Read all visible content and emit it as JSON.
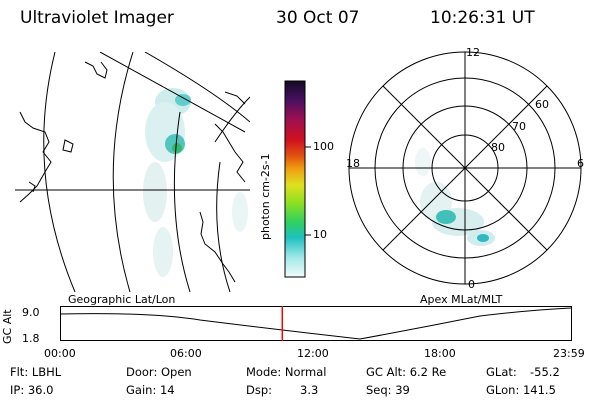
{
  "header": {
    "instrument": "Ultraviolet Imager",
    "date": "30 Oct 07",
    "time": "10:26:31 UT"
  },
  "colorbar": {
    "label": "photon cm-2s-1",
    "ticks": [
      "100",
      "10"
    ],
    "colors": [
      "#1a1033",
      "#4a1060",
      "#a01050",
      "#d01020",
      "#e05010",
      "#f0a010",
      "#e0e020",
      "#90e020",
      "#30d060",
      "#20c0c0",
      "#a0e8e8",
      "#f0f8f8"
    ]
  },
  "geo_map": {
    "title": "Geographic Lat/Lon"
  },
  "polar_plot": {
    "title": "Apex MLat/MLT",
    "mlt_labels": [
      "12",
      "6",
      "0",
      "18"
    ],
    "lat_labels": [
      "60",
      "70",
      "80"
    ]
  },
  "altitude_plot": {
    "ylabel": "GC Alt",
    "yticks": [
      "9.0",
      "1.8"
    ],
    "xticks": [
      "00:00",
      "06:00",
      "12:00",
      "18:00",
      "23:59"
    ],
    "marker_time_hours": 10.44,
    "marker_color": "#ff0000"
  },
  "status": {
    "flt": "Flt: LBHL",
    "ip": "IP: 36.0",
    "door": "Door: Open",
    "gain": "Gain: 14",
    "mode": "Mode: Normal",
    "dsp_label": "Dsp:",
    "dsp_value": "3.3",
    "gc_alt": "GC Alt: 6.2 Re",
    "seq": "Seq: 39",
    "glat_label": "GLat:",
    "glat_value": "-55.2",
    "glon": "GLon: 141.5"
  }
}
